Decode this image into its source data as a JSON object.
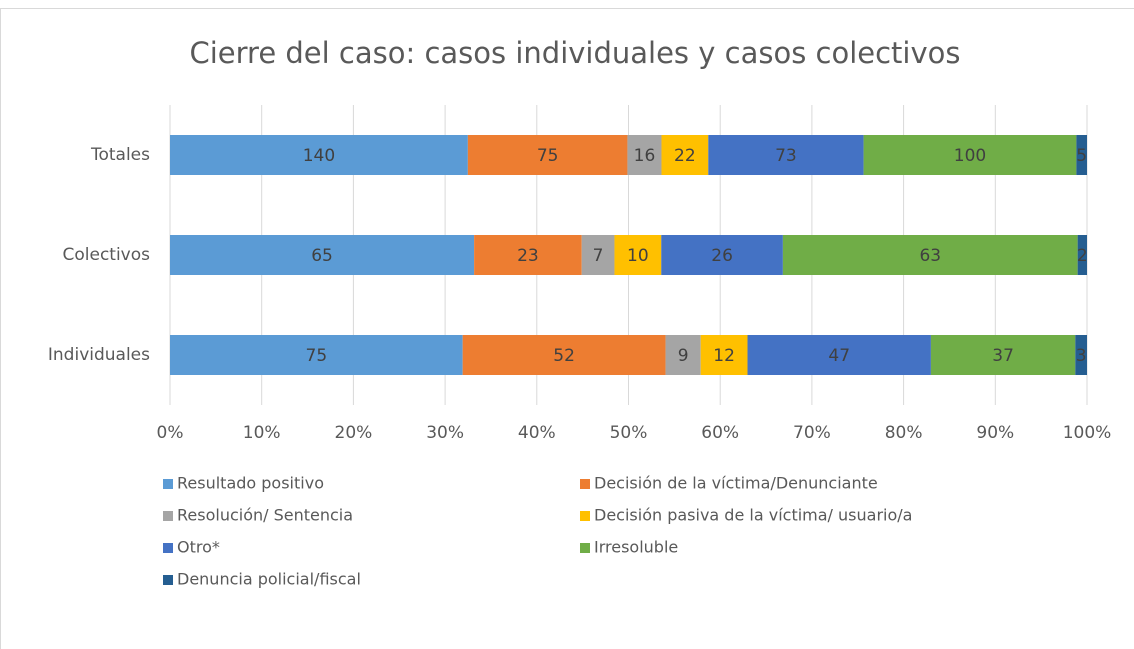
{
  "chart_data": {
    "type": "stacked_percent_bar",
    "orientation": "horizontal",
    "title": "Cierre del caso: casos individuales y casos colectivos",
    "categories": [
      "Totales",
      "Colectivos",
      "Individuales"
    ],
    "series": [
      {
        "name": "Resultado positivo",
        "color": "#5b9bd5",
        "values": [
          140,
          65,
          75
        ]
      },
      {
        "name": "Decisión de la víctima/Denunciante",
        "color": "#ed7d31",
        "values": [
          75,
          23,
          52
        ]
      },
      {
        "name": "Resolución/ Sentencia",
        "color": "#a5a5a5",
        "values": [
          16,
          7,
          9
        ]
      },
      {
        "name": "Decisión pasiva de la víctima/ usuario/a",
        "color": "#ffc000",
        "values": [
          22,
          10,
          12
        ]
      },
      {
        "name": "Otro*",
        "color": "#4472c4",
        "values": [
          73,
          26,
          47
        ]
      },
      {
        "name": "Irresoluble",
        "color": "#70ad47",
        "values": [
          100,
          63,
          37
        ]
      },
      {
        "name": "Denuncia policial/fiscal",
        "color": "#255e91",
        "values": [
          5,
          2,
          3
        ]
      }
    ],
    "xlim": [
      0,
      100
    ],
    "xticks": [
      {
        "value": 0,
        "label": "0%"
      },
      {
        "value": 10,
        "label": "10%"
      },
      {
        "value": 20,
        "label": "20%"
      },
      {
        "value": 30,
        "label": "30%"
      },
      {
        "value": 40,
        "label": "40%"
      },
      {
        "value": 50,
        "label": "50%"
      },
      {
        "value": 60,
        "label": "60%"
      },
      {
        "value": 70,
        "label": "70%"
      },
      {
        "value": 80,
        "label": "80%"
      },
      {
        "value": 90,
        "label": "90%"
      },
      {
        "value": 100,
        "label": "100%"
      }
    ],
    "grid": true
  }
}
